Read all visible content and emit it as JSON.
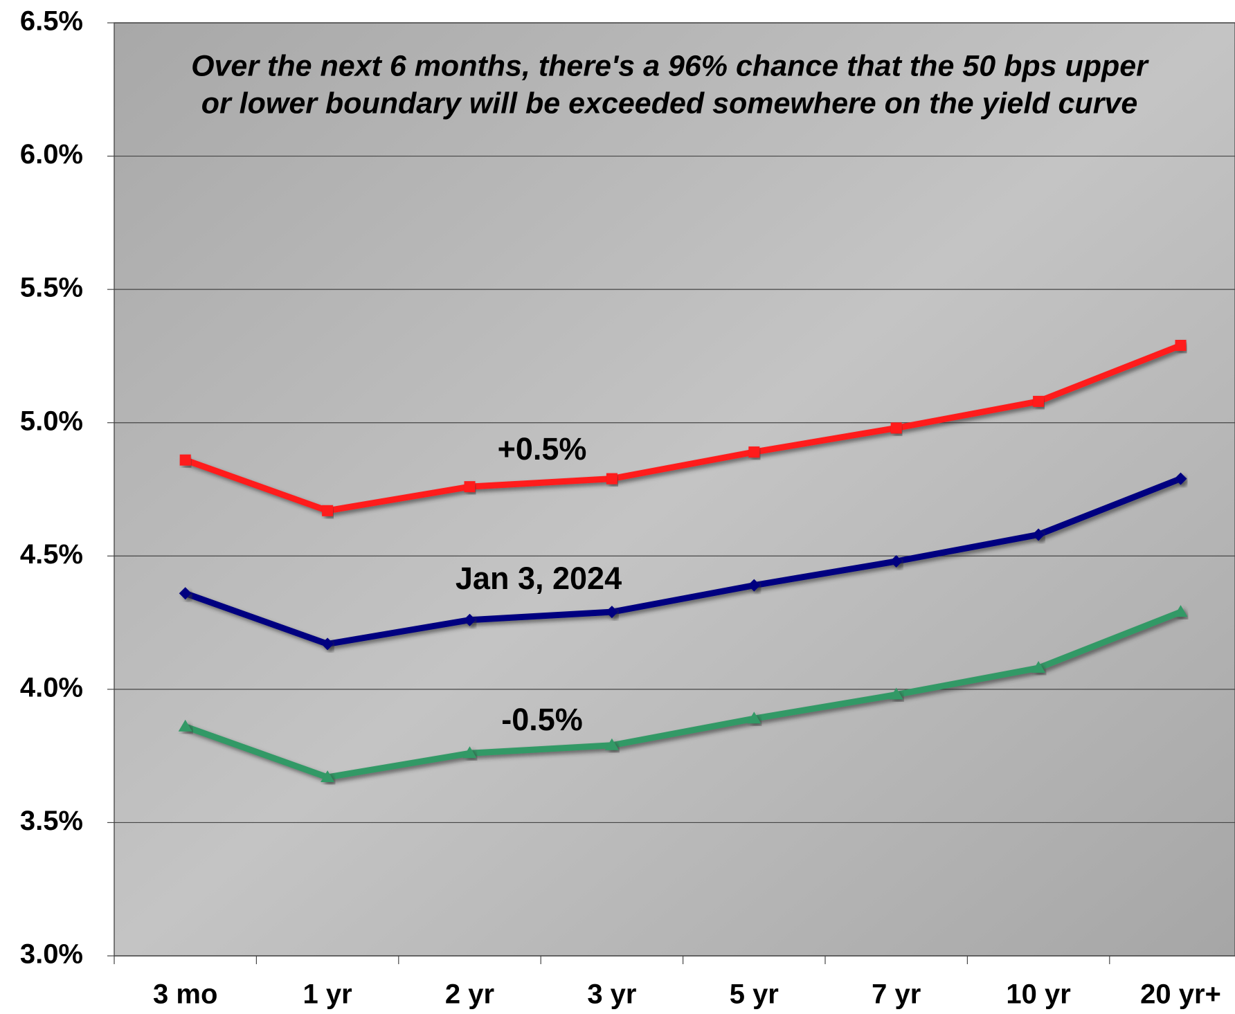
{
  "chart_data": {
    "type": "line",
    "annotation": [
      "Over the next 6 months, there's a 96% chance that the 50 bps upper",
      "or lower boundary will be exceeded somewhere on the yield curve"
    ],
    "categories": [
      "3 mo",
      "1 yr",
      "2 yr",
      "3 yr",
      "5 yr",
      "7 yr",
      "10 yr",
      "20 yr+"
    ],
    "series": [
      {
        "name": "+0.5%",
        "color": "#ff1a1a",
        "marker": "square",
        "values": [
          4.86,
          4.67,
          4.76,
          4.79,
          4.89,
          4.98,
          5.08,
          5.29
        ]
      },
      {
        "name": "Jan 3, 2024",
        "color": "#000080",
        "marker": "diamond",
        "values": [
          4.36,
          4.17,
          4.26,
          4.29,
          4.39,
          4.48,
          4.58,
          4.79
        ]
      },
      {
        "name": "-0.5%",
        "color": "#339966",
        "marker": "triangle",
        "values": [
          3.86,
          3.67,
          3.76,
          3.79,
          3.89,
          3.98,
          4.08,
          4.29
        ]
      }
    ],
    "ylim": [
      3.0,
      6.5
    ],
    "yticks": [
      {
        "value": 3.0,
        "label": "3.0%"
      },
      {
        "value": 3.5,
        "label": "3.5%"
      },
      {
        "value": 4.0,
        "label": "4.0%"
      },
      {
        "value": 4.5,
        "label": "4.5%"
      },
      {
        "value": 5.0,
        "label": "5.0%"
      },
      {
        "value": 5.5,
        "label": "5.5%"
      },
      {
        "value": 6.0,
        "label": "6.0%"
      },
      {
        "value": 6.5,
        "label": "6.5%"
      }
    ],
    "grid": true
  }
}
